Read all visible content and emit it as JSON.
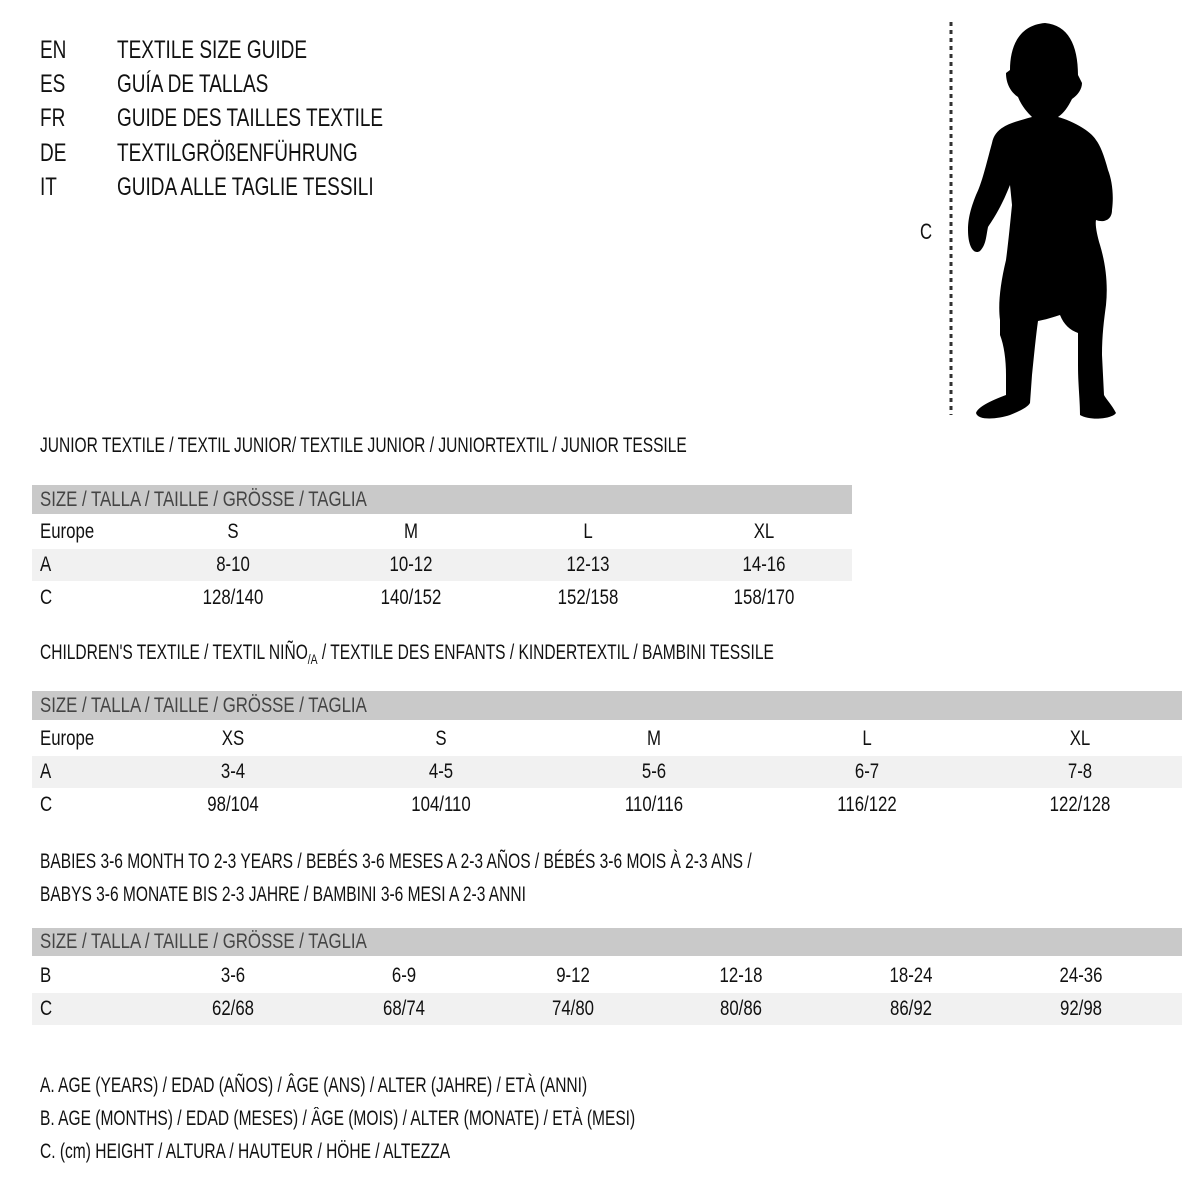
{
  "header": {
    "lines": [
      {
        "code": "EN",
        "title": "TEXTILE SIZE GUIDE"
      },
      {
        "code": "ES",
        "title": "GUÍA DE TALLAS"
      },
      {
        "code": "FR",
        "title": "GUIDE DES TAILLES TEXTILE"
      },
      {
        "code": "DE",
        "title": "TEXTILGRÖßENFÜHRUNG"
      },
      {
        "code": "IT",
        "title": "GUIDA ALLE TAGLIE TESSILI"
      }
    ]
  },
  "figure": {
    "height_label": "C",
    "icon": "child-silhouette"
  },
  "junior": {
    "title": "JUNIOR TEXTILE / TEXTIL JUNIOR/ TEXTILE JUNIOR / JUNIORTEXTIL / JUNIOR TESSILE",
    "header": "SIZE / TALLA / TAILLE / GRÖSSE / TAGLIA",
    "rows": [
      {
        "label": "Europe",
        "values": [
          "S",
          "M",
          "L",
          "XL"
        ]
      },
      {
        "label": "A",
        "values": [
          "8-10",
          "10-12",
          "12-13",
          "14-16"
        ]
      },
      {
        "label": "C",
        "values": [
          "128/140",
          "140/152",
          "152/158",
          "158/170"
        ]
      }
    ]
  },
  "children": {
    "title_pre": "CHILDREN'S TEXTILE / TEXTIL NIÑO",
    "title_sub": "/A",
    "title_post": " / TEXTILE DES ENFANTS / KINDERTEXTIL / BAMBINI TESSILE",
    "header": "SIZE / TALLA / TAILLE / GRÖSSE / TAGLIA",
    "rows": [
      {
        "label": "Europe",
        "values": [
          "XS",
          "S",
          "M",
          "L",
          "XL"
        ]
      },
      {
        "label": "A",
        "values": [
          "3-4",
          "4-5",
          "5-6",
          "6-7",
          "7-8"
        ]
      },
      {
        "label": "C",
        "values": [
          "98/104",
          "104/110",
          "110/116",
          "116/122",
          "122/128"
        ]
      }
    ]
  },
  "babies": {
    "title_line1": "BABIES 3-6 MONTH TO 2-3 YEARS / BEBÉS 3-6 MESES A 2-3 AÑOS / BÉBÉS 3-6 MOIS À 2-3 ANS /",
    "title_line2": "BABYS 3-6 MONATE BIS 2-3 JAHRE / BAMBINI 3-6 MESI A 2-3 ANNI",
    "header": "SIZE / TALLA / TAILLE / GRÖSSE / TAGLIA",
    "rows": [
      {
        "label": "B",
        "values": [
          "3-6",
          "6-9",
          "9-12",
          "12-18",
          "18-24",
          "24-36"
        ]
      },
      {
        "label": "C",
        "values": [
          "62/68",
          "68/74",
          "74/80",
          "80/86",
          "86/92",
          "92/98"
        ]
      }
    ]
  },
  "legend": [
    "A. AGE (YEARS) / EDAD (AÑOS) / ÂGE (ANS) / ALTER (JAHRE) / ETÀ (ANNI)",
    "B. AGE (MONTHS) / EDAD (MESES) / ÂGE (MOIS) / ALTER (MONATE) / ETÀ (MESI)",
    "C. (cm) HEIGHT / ALTURA / HAUTEUR / HÖHE / ALTEZZA"
  ],
  "colors": {
    "header_row": "#c9c9c9",
    "alt_row": "#f1f1f1",
    "text": "#111111"
  }
}
